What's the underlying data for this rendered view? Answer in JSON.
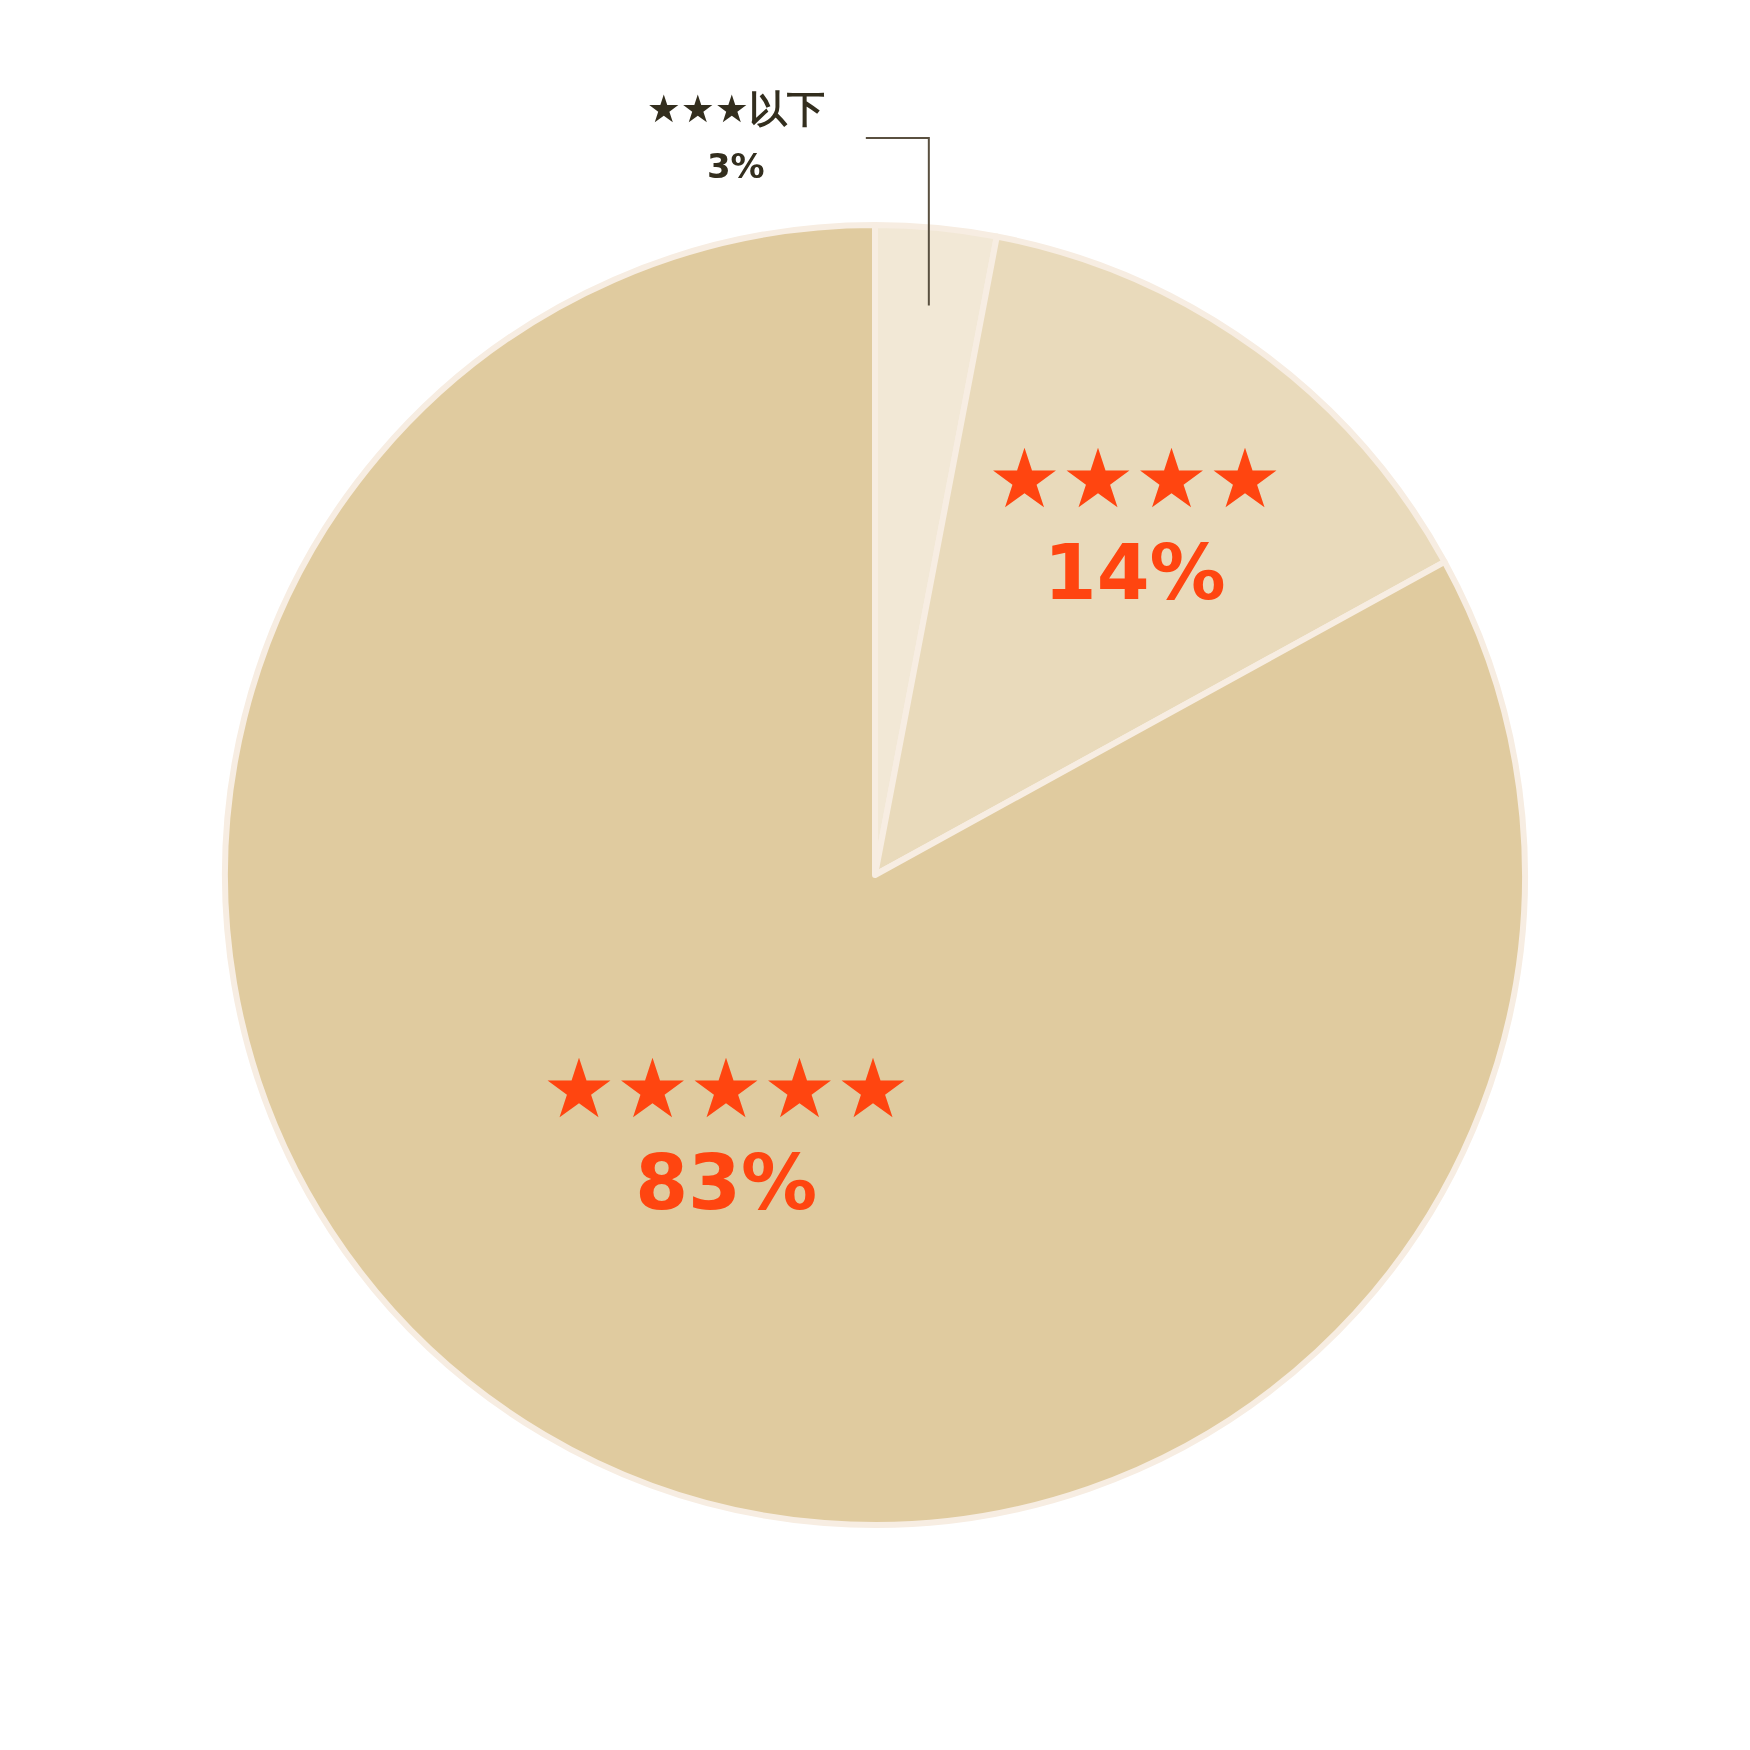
{
  "chart_data": {
    "type": "pie",
    "categories": [
      "★★★以下",
      "★★★★",
      "★★★★★"
    ],
    "values": [
      3,
      14,
      83
    ],
    "colors": [
      "#f2e8d6",
      "#e9dabb",
      "#e0cb9f"
    ],
    "value_labels": [
      "3%",
      "14%",
      "83%"
    ]
  }
}
